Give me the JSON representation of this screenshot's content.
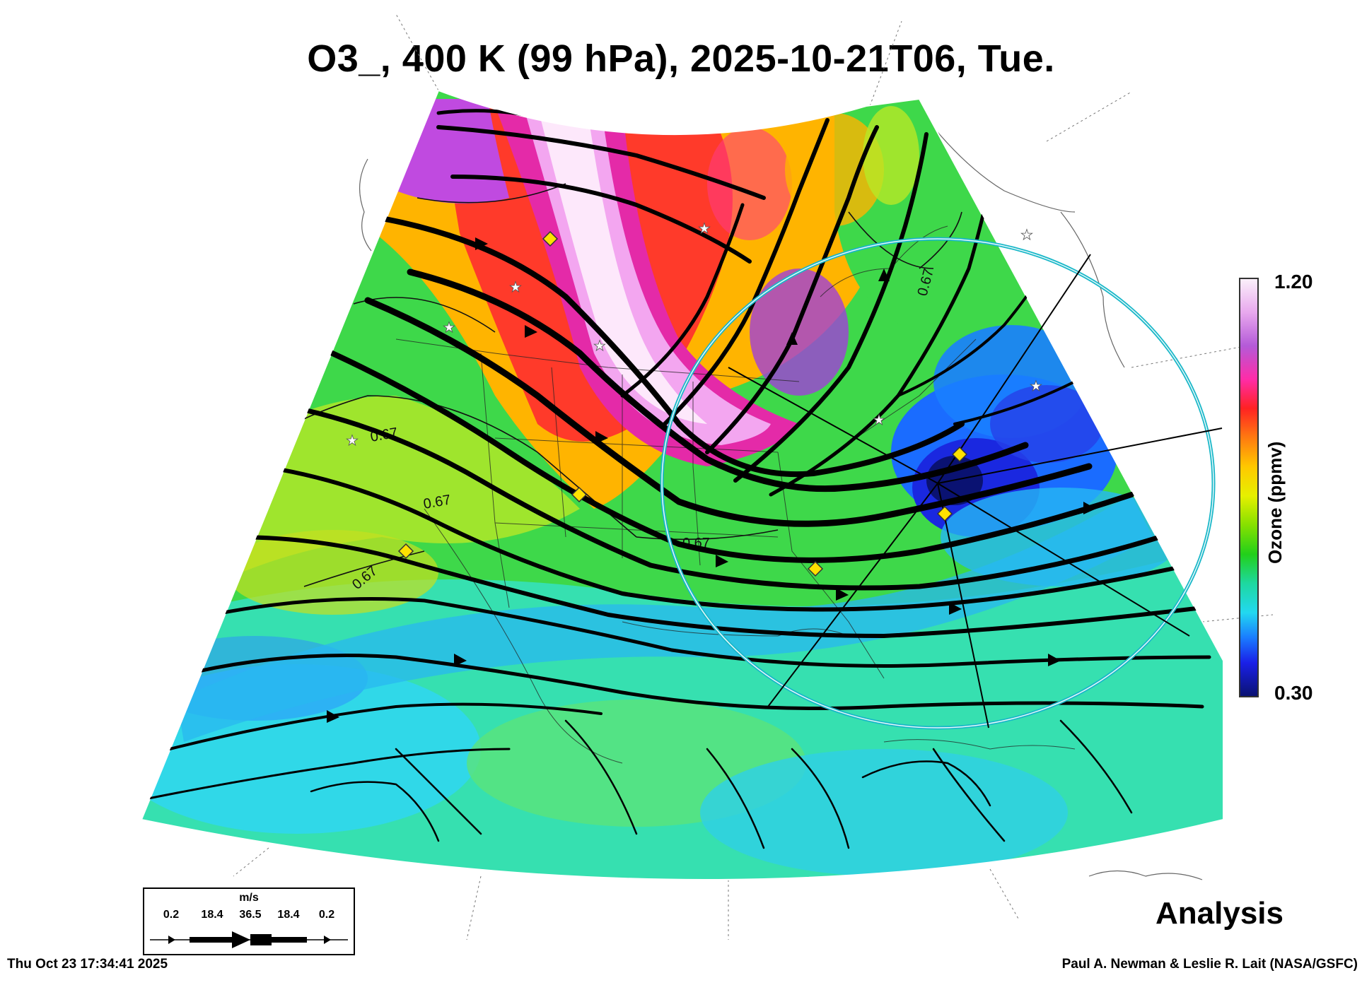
{
  "title": "O3_, 400 K (99 hPa), 2025-10-21T06, Tue.",
  "colorbar": {
    "max_label": "1.20",
    "min_label": "0.30",
    "title": "Ozone (ppmv)"
  },
  "contour_labels": [
    "0.67",
    "0.67",
    "0.67",
    "0.67",
    "0.67"
  ],
  "scale_legend": {
    "unit": "m/s",
    "values": [
      "0.2",
      "18.4",
      "36.5",
      "18.4",
      "0.2"
    ]
  },
  "analysis_label": "Analysis",
  "footer": {
    "timestamp": "Thu Oct 23 17:34:41 2025",
    "credit": "Paul A. Newman & Leslie R. Lait (NASA/GSFC)"
  },
  "colors": {
    "range_circle": "#19b7c8",
    "marker_diamond": "#ffe000",
    "streamline": "#000000"
  }
}
